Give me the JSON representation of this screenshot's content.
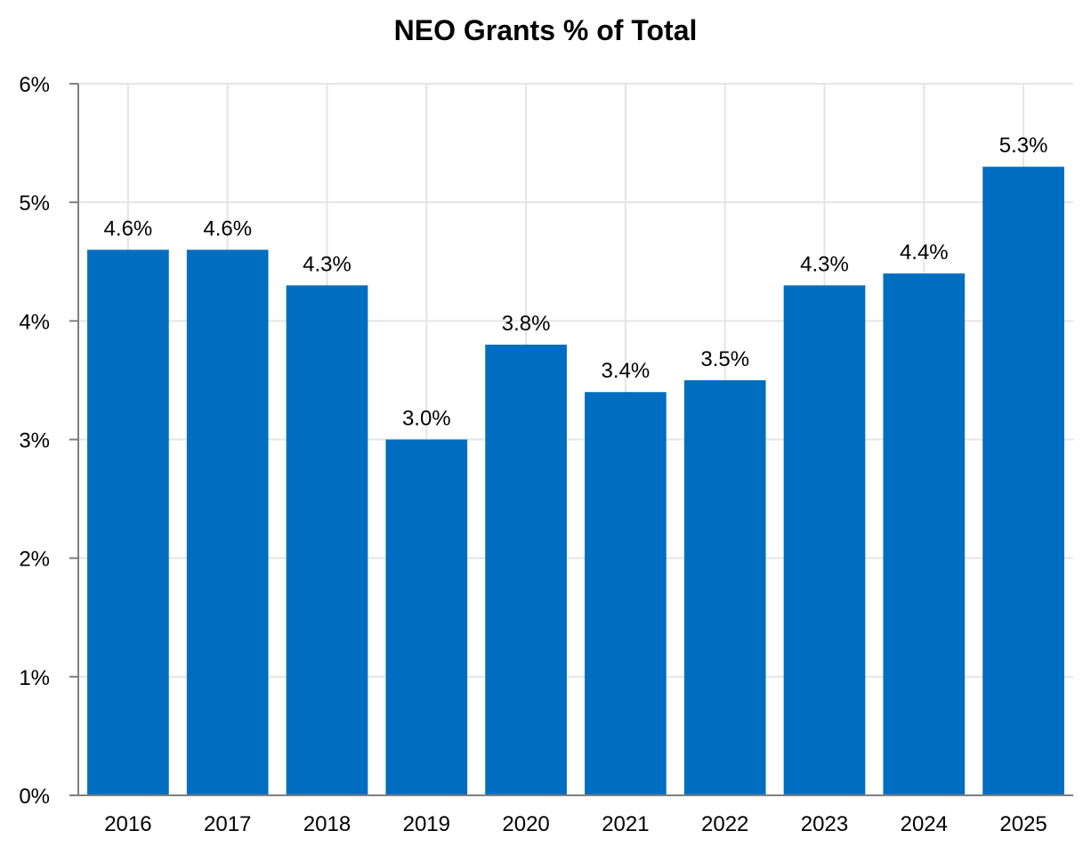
{
  "chart_data": {
    "type": "bar",
    "title": "NEO Grants % of Total",
    "categories": [
      "2016",
      "2017",
      "2018",
      "2019",
      "2020",
      "2021",
      "2022",
      "2023",
      "2024",
      "2025"
    ],
    "values": [
      4.6,
      4.6,
      4.3,
      3.0,
      3.8,
      3.4,
      3.5,
      4.3,
      4.4,
      5.3
    ],
    "data_labels": [
      "4.6%",
      "4.6%",
      "4.3%",
      "3.0%",
      "3.8%",
      "3.4%",
      "3.5%",
      "4.3%",
      "4.4%",
      "5.3%"
    ],
    "ylim": [
      0,
      6
    ],
    "yticks": [
      0,
      1,
      2,
      3,
      4,
      5,
      6
    ],
    "ytick_labels": [
      "0%",
      "1%",
      "2%",
      "3%",
      "4%",
      "5%",
      "6%"
    ],
    "xlabel": "",
    "ylabel": "",
    "grid": true,
    "bar_color": "#006EC0",
    "grid_color": "#E5E5E5",
    "axis_color": "#7F7F7F"
  }
}
